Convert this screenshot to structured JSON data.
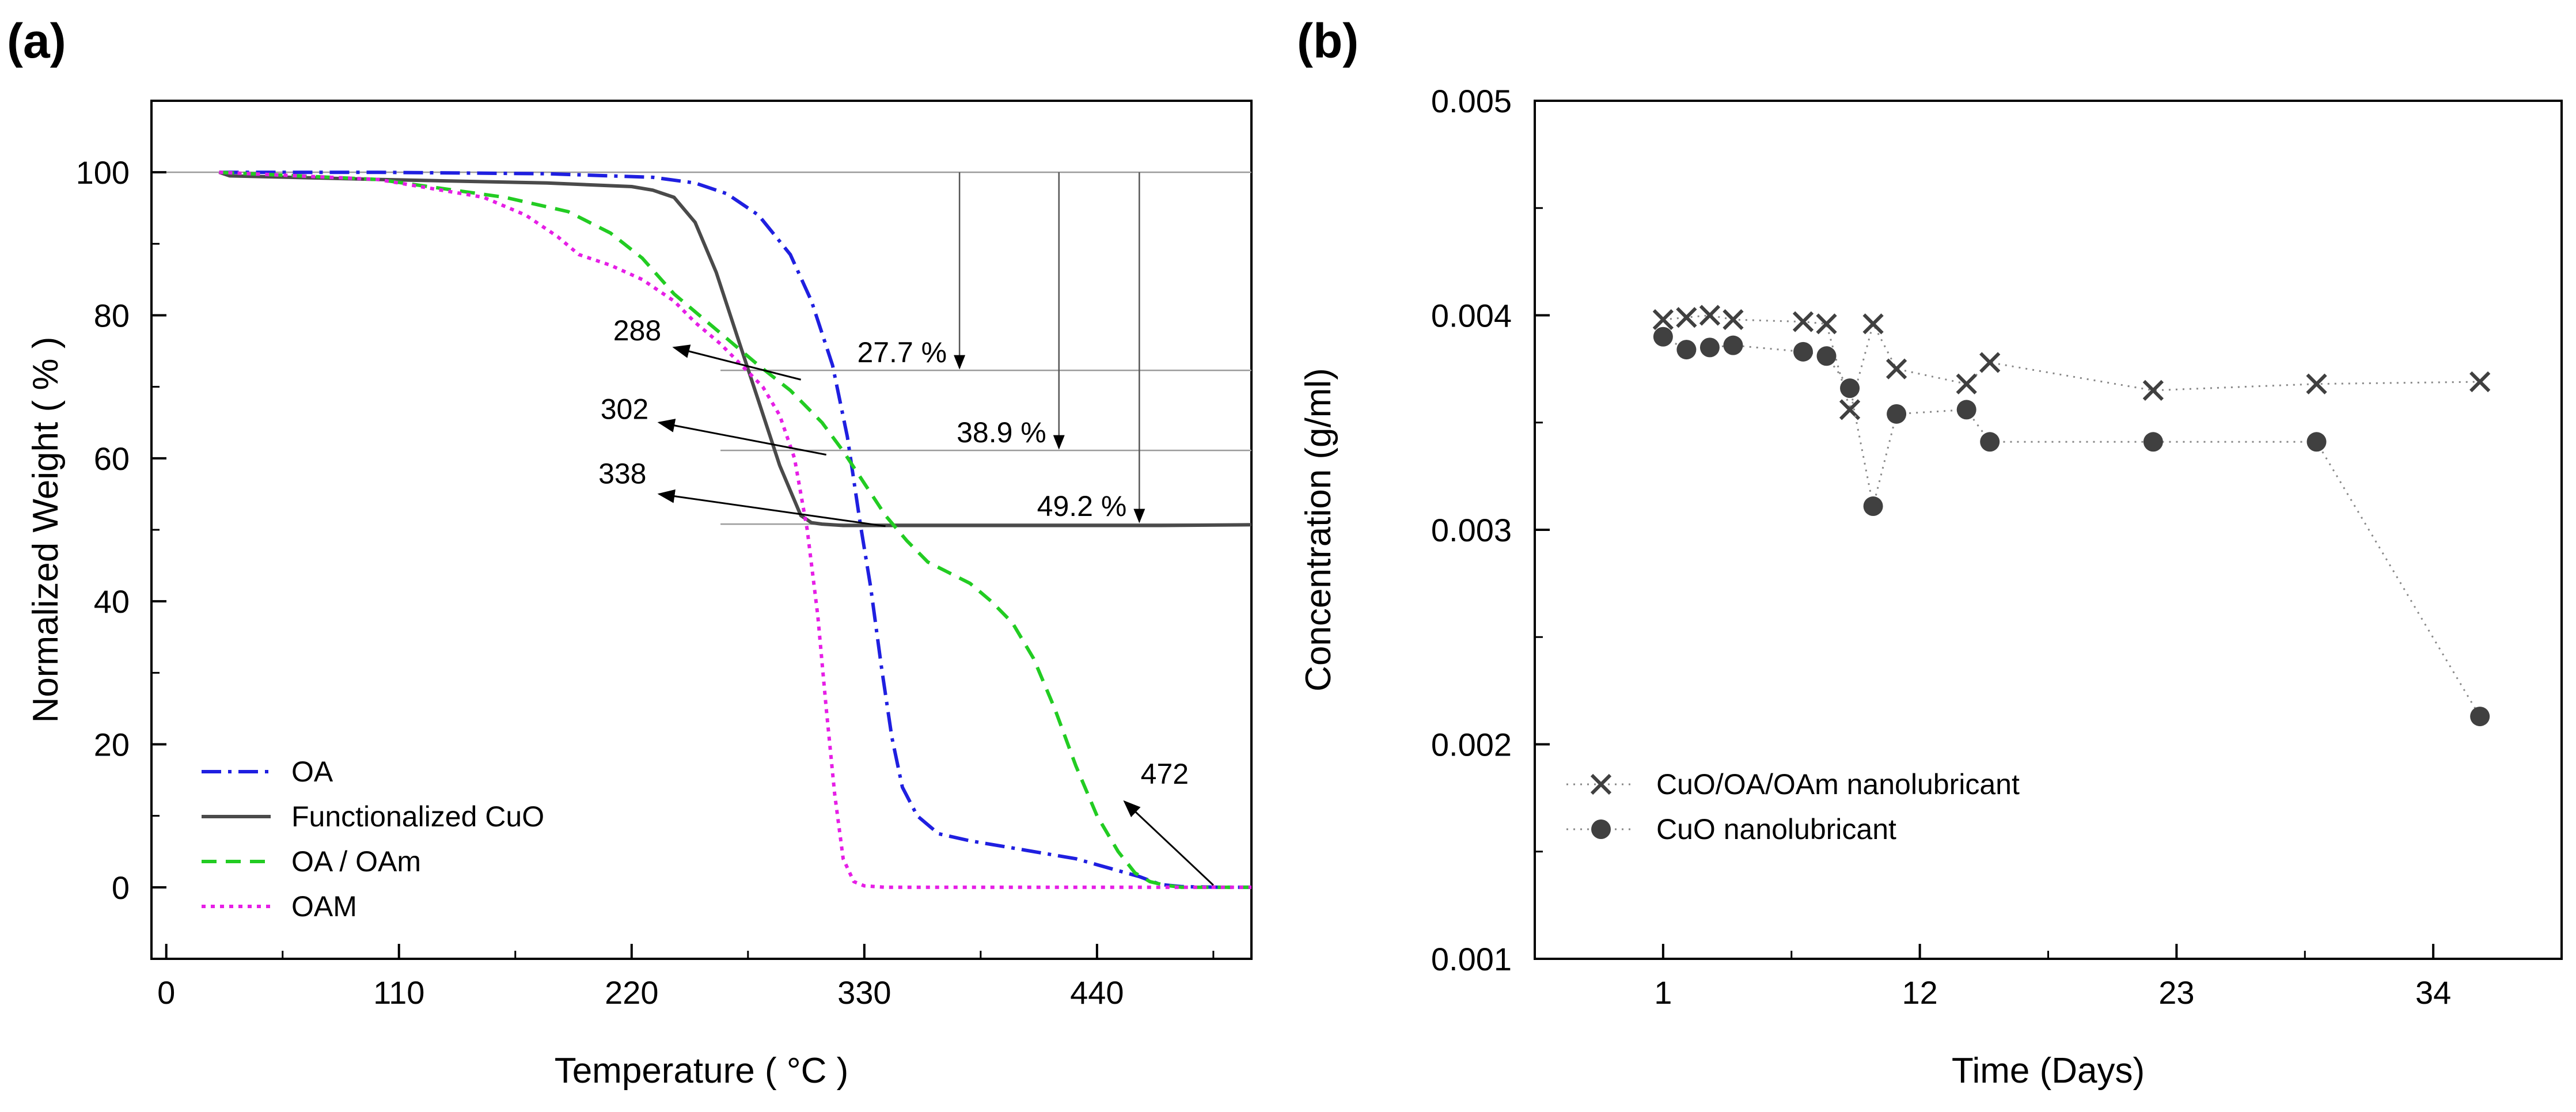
{
  "panels": {
    "a_label": "(a)",
    "b_label": "(b)"
  },
  "colors": {
    "OA": "#1f1fe0",
    "Functionalized CuO": "#4a4a4a",
    "OA / OAm": "#22cc22",
    "OAM": "#e61ee6",
    "marker": "#404040",
    "guide": "#9a9a9a"
  },
  "chart_data": [
    {
      "id": "tga",
      "type": "line",
      "xlabel": "Temperature ( °C )",
      "ylabel": "Normalized Weight ( % )",
      "xlim": [
        -7,
        513
      ],
      "ylim": [
        -10,
        110
      ],
      "xticks": [
        0,
        110,
        220,
        330,
        440
      ],
      "yticks": [
        0,
        20,
        40,
        60,
        80,
        100
      ],
      "legend_position": "bottom-left",
      "series": [
        {
          "name": "OA",
          "style": "dash-dot",
          "x": [
            25,
            100,
            180,
            230,
            250,
            265,
            280,
            295,
            305,
            315,
            322,
            328,
            333,
            338,
            343,
            348,
            355,
            365,
            380,
            400,
            430,
            460,
            470,
            480,
            500,
            513
          ],
          "y": [
            100,
            100,
            99.8,
            99.3,
            98.5,
            97,
            94,
            88.5,
            82,
            73,
            63,
            51,
            42,
            31,
            21,
            14,
            10,
            7.5,
            6.5,
            5.5,
            4,
            1.5,
            0.4,
            0.1,
            0,
            0
          ]
        },
        {
          "name": "Functionalized CuO",
          "style": "solid",
          "x": [
            25,
            30,
            100,
            180,
            220,
            230,
            240,
            250,
            260,
            270,
            280,
            290,
            300,
            305,
            310,
            320,
            340,
            400,
            470,
            513
          ],
          "y": [
            100,
            99.5,
            99,
            98.5,
            98,
            97.5,
            96.5,
            93,
            86,
            77,
            68,
            59,
            52,
            51,
            50.8,
            50.6,
            50.6,
            50.6,
            50.6,
            50.7
          ]
        },
        {
          "name": "OA / OAm",
          "style": "dashed",
          "x": [
            25,
            100,
            160,
            190,
            210,
            225,
            240,
            260,
            280,
            295,
            310,
            320,
            330,
            340,
            350,
            360,
            370,
            380,
            390,
            400,
            410,
            420,
            430,
            440,
            450,
            458,
            465,
            472,
            480,
            500,
            513
          ],
          "y": [
            100,
            99,
            96.5,
            94.5,
            91.5,
            88,
            83,
            78,
            73,
            69.5,
            65,
            61,
            56.5,
            52,
            48.5,
            45.5,
            44,
            42.5,
            40,
            37,
            32,
            25,
            17,
            10,
            5,
            2,
            0.8,
            0.3,
            0,
            0,
            0
          ]
        },
        {
          "name": "OAM",
          "style": "dotted",
          "x": [
            25,
            100,
            150,
            170,
            185,
            195,
            210,
            225,
            240,
            250,
            262,
            272,
            282,
            290,
            297,
            303,
            308,
            312,
            316,
            320,
            325,
            330,
            340,
            400,
            513
          ],
          "y": [
            100,
            99,
            96.5,
            94,
            91,
            88.5,
            87,
            85,
            82,
            79,
            76,
            73,
            70,
            66,
            60,
            50,
            38,
            25,
            13,
            4,
            0.8,
            0.2,
            0,
            0,
            0
          ]
        }
      ],
      "guide_lines": [
        {
          "y": 100,
          "x1": 0,
          "x2": 513
        },
        {
          "y": 72.3,
          "x1": 262,
          "x2": 513
        },
        {
          "y": 61.1,
          "x1": 262,
          "x2": 513
        },
        {
          "y": 50.8,
          "x1": 262,
          "x2": 513
        }
      ],
      "drops": [
        {
          "x": 375,
          "from": 100,
          "to": 72.3,
          "label": "27.7 %"
        },
        {
          "x": 422,
          "from": 100,
          "to": 61.1,
          "label": "38.9 %"
        },
        {
          "x": 460,
          "from": 100,
          "to": 50.8,
          "label": "49.2 %"
        }
      ],
      "onset_annotations": [
        {
          "label": "288",
          "text_x": 234,
          "text_y": 76.5,
          "tip_x": 240,
          "tip_y": 75.5,
          "tail_x": 300,
          "tail_y": 71
        },
        {
          "label": "302",
          "text_x": 228,
          "text_y": 65.5,
          "tip_x": 233,
          "tip_y": 65,
          "tail_x": 312,
          "tail_y": 60.5
        },
        {
          "label": "338",
          "text_x": 227,
          "text_y": 56.5,
          "tip_x": 233,
          "tip_y": 55,
          "tail_x": 340,
          "tail_y": 50.5
        },
        {
          "label": "472",
          "text_x": 472,
          "text_y": 14.5,
          "tip_x": 453,
          "tip_y": 12,
          "tail_x": 495,
          "tail_y": 0.3
        }
      ]
    },
    {
      "id": "stability",
      "type": "scatter",
      "xlabel": "Time (Days)",
      "ylabel": "Concentration (g/ml)",
      "xlim": [
        -4.5,
        39.5
      ],
      "ylim": [
        0.001,
        0.005
      ],
      "xticks": [
        1,
        12,
        23,
        34
      ],
      "yticks": [
        0.001,
        0.002,
        0.003,
        0.004,
        0.005
      ],
      "ytick_labels": [
        "0.001",
        "0.002",
        "0.003",
        "0.004",
        "0.005"
      ],
      "legend_position": "bottom-left",
      "series": [
        {
          "name": "CuO/OA/OAm nanolubricant",
          "marker": "x",
          "x": [
            1,
            2,
            3,
            4,
            7,
            8,
            9,
            10,
            11,
            14,
            15,
            22,
            29,
            36
          ],
          "y": [
            0.00398,
            0.00399,
            0.004,
            0.00398,
            0.00397,
            0.00396,
            0.00356,
            0.00396,
            0.00375,
            0.00368,
            0.00378,
            0.00365,
            0.00368,
            0.00369
          ]
        },
        {
          "name": "CuO nanolubricant",
          "marker": "circle",
          "x": [
            1,
            2,
            3,
            4,
            7,
            8,
            9,
            10,
            11,
            14,
            15,
            22,
            29,
            36
          ],
          "y": [
            0.0039,
            0.00384,
            0.00385,
            0.00386,
            0.00383,
            0.00381,
            0.00366,
            0.00311,
            0.00354,
            0.00356,
            0.00341,
            0.00341,
            0.00341,
            0.00213
          ]
        }
      ]
    }
  ]
}
